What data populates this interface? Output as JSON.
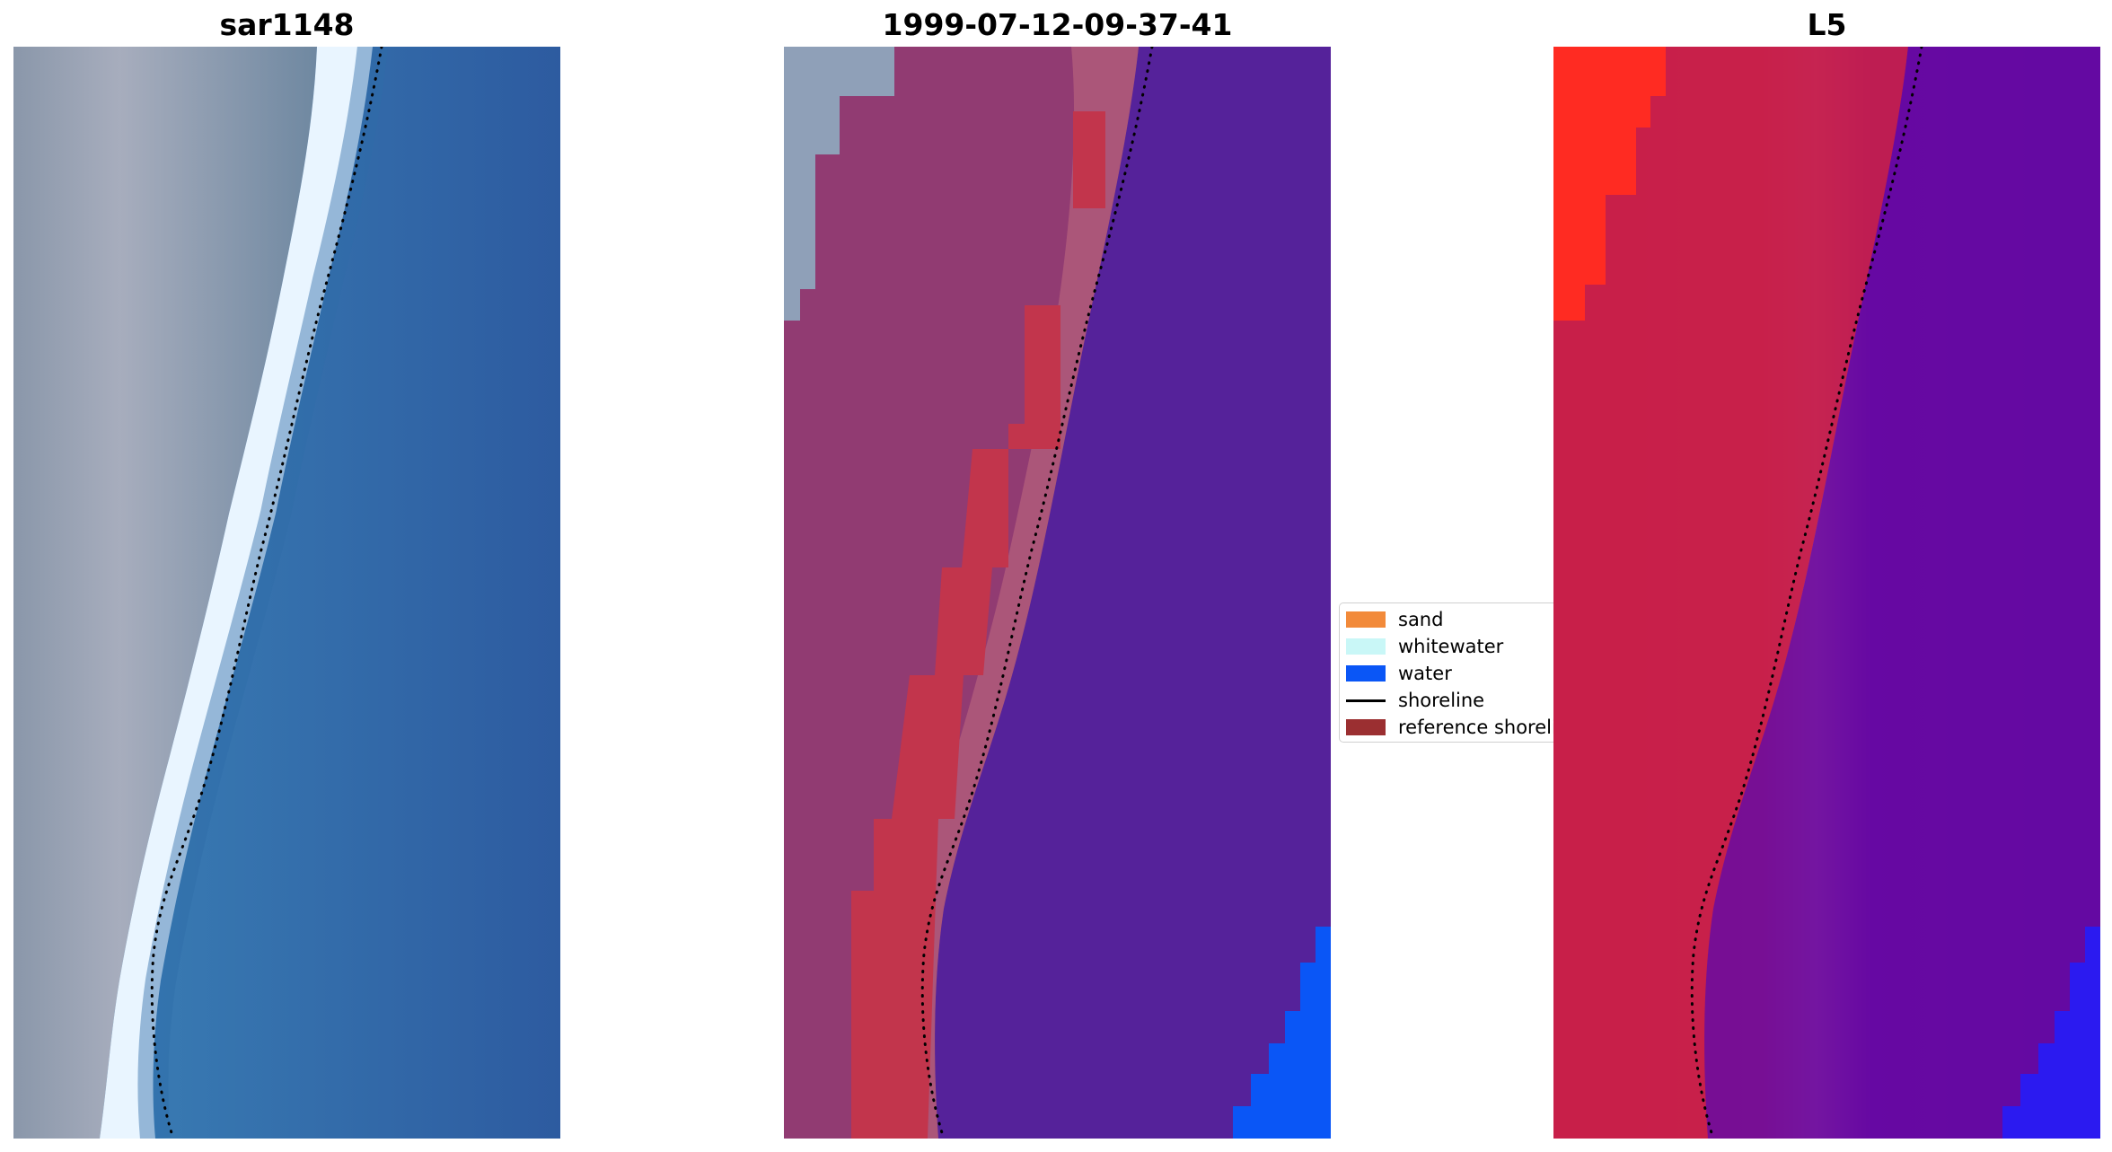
{
  "panels": {
    "sar": {
      "title": "sar1148"
    },
    "classification": {
      "title": "1999-07-12-09-37-41"
    },
    "index": {
      "title": "L5"
    }
  },
  "legend": {
    "items": [
      {
        "label": "sand",
        "color": "#f28a3a",
        "kind": "swatch"
      },
      {
        "label": "whitewater",
        "color": "#c9f7f7",
        "kind": "swatch"
      },
      {
        "label": "water",
        "color": "#0a56f6",
        "kind": "swatch"
      },
      {
        "label": "shoreline",
        "color": "#000000",
        "kind": "line"
      },
      {
        "label": "reference shoreli",
        "color": "#9b2f31",
        "kind": "swatch"
      }
    ]
  },
  "colors": {
    "sar_water": "#2f6ca8",
    "sar_land": "#8f9bb0",
    "sar_whitewater": "#e9f5ff",
    "class_land": "#913b72",
    "class_water": "#55229a",
    "class_reference": "#c2354c",
    "index_land": "#c81f49",
    "index_water": "#5c0aa0",
    "bright_red": "#ff2b22",
    "bright_blue": "#0a56f6",
    "shoreline": "#000000"
  }
}
